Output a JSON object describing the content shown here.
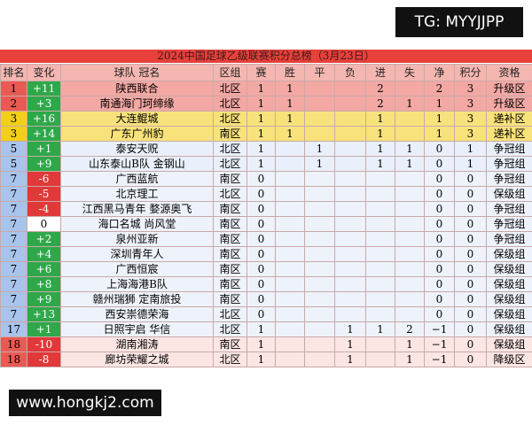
{
  "watermark_top": "TG: MYYJJPP",
  "title": "2024中国足球乙级联赛积分总榜（3月23日）",
  "table": {
    "header": [
      "排名",
      "变化",
      "球队 冠名",
      "区组",
      "赛",
      "胜",
      "平",
      "负",
      "进",
      "失",
      "净",
      "积分",
      "资格"
    ],
    "rows": [
      [
        "1",
        "+11",
        "陕西联合",
        "北区",
        "1",
        "1",
        null,
        null,
        "2",
        null,
        "2",
        "3",
        "升级区"
      ],
      [
        "2",
        "+3",
        "南通海门珂缔缘",
        "北区",
        "1",
        "1",
        null,
        null,
        "2",
        "1",
        "1",
        "3",
        "升级区"
      ],
      [
        "3",
        "+16",
        "大连鲲城",
        "北区",
        "1",
        "1",
        null,
        null,
        "1",
        null,
        "1",
        "3",
        "递补区"
      ],
      [
        "3",
        "+14",
        "广东广州豹",
        "南区",
        "1",
        "1",
        null,
        null,
        "1",
        null,
        "1",
        "3",
        "递补区"
      ],
      [
        "5",
        "+1",
        "泰安天贶",
        "北区",
        "1",
        null,
        "1",
        null,
        "1",
        "1",
        "0",
        "1",
        "争冠组"
      ],
      [
        "5",
        "+9",
        "山东泰山B队 金钢山",
        "北区",
        "1",
        null,
        "1",
        null,
        "1",
        "1",
        "0",
        "1",
        "争冠组"
      ],
      [
        "7",
        "-6",
        "广西蓝航",
        "南区",
        "0",
        null,
        null,
        null,
        null,
        null,
        "0",
        "0",
        "争冠组"
      ],
      [
        "7",
        "-5",
        "北京理工",
        "北区",
        "0",
        null,
        null,
        null,
        null,
        null,
        "0",
        "0",
        "保级组"
      ],
      [
        "7",
        "-4",
        "江西黑马青年 婺源奥飞",
        "南区",
        "0",
        null,
        null,
        null,
        null,
        null,
        "0",
        "0",
        "争冠组"
      ],
      [
        "7",
        "0",
        "海口名城 尚风堂",
        "南区",
        "0",
        null,
        null,
        null,
        null,
        null,
        "0",
        "0",
        "争冠组"
      ],
      [
        "7",
        "+2",
        "泉州亚新",
        "南区",
        "0",
        null,
        null,
        null,
        null,
        null,
        "0",
        "0",
        "争冠组"
      ],
      [
        "7",
        "+4",
        "深圳青年人",
        "南区",
        "0",
        null,
        null,
        null,
        null,
        null,
        "0",
        "0",
        "保级组"
      ],
      [
        "7",
        "+6",
        "广西恒宸",
        "南区",
        "0",
        null,
        null,
        null,
        null,
        null,
        "0",
        "0",
        "保级组"
      ],
      [
        "7",
        "+8",
        "上海海港B队",
        "南区",
        "0",
        null,
        null,
        null,
        null,
        null,
        "0",
        "0",
        "保级组"
      ],
      [
        "7",
        "+9",
        "赣州瑞狮 定南旅投",
        "南区",
        "0",
        null,
        null,
        null,
        null,
        null,
        "0",
        "0",
        "保级组"
      ],
      [
        "7",
        "+13",
        "西安崇德荣海",
        "北区",
        "0",
        null,
        null,
        null,
        null,
        null,
        "0",
        "0",
        "保级组"
      ],
      [
        "17",
        "+1",
        "日照宇启 华信",
        "北区",
        "1",
        null,
        null,
        "1",
        "1",
        "2",
        "−1",
        "0",
        "保级组"
      ],
      [
        "18",
        "-10",
        "湖南湘涛",
        "南区",
        "1",
        null,
        null,
        "1",
        null,
        "1",
        "−1",
        "0",
        "保级组"
      ],
      [
        "18",
        "-8",
        "廊坊荣耀之城",
        "北区",
        "1",
        null,
        null,
        "1",
        null,
        "1",
        "−1",
        "0",
        "降级区"
      ]
    ]
  },
  "watermark_bottom": "www.hongkj2.com"
}
